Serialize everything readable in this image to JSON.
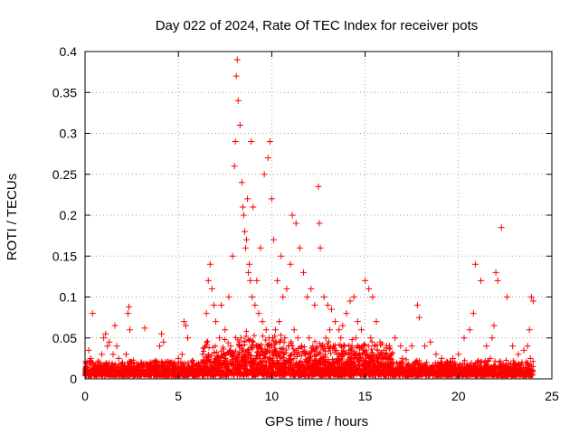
{
  "chart_data": {
    "type": "scatter",
    "title": "Day 022 of 2024, Rate Of TEC Index for receiver pots",
    "xlabel": "GPS time / hours",
    "ylabel": "ROTI / TECUs",
    "xlim": [
      0,
      25
    ],
    "ylim": [
      0,
      0.4
    ],
    "xticks": [
      0,
      5,
      10,
      15,
      20,
      25
    ],
    "yticks": [
      0,
      0.05,
      0.1,
      0.15,
      0.2,
      0.25,
      0.3,
      0.35,
      0.4
    ],
    "xtick_labels": [
      "0",
      "5",
      "10",
      "15",
      "20",
      "25"
    ],
    "ytick_labels": [
      "0",
      "0.05",
      "0.1",
      "0.15",
      "0.2",
      "0.25",
      "0.3",
      "0.35",
      "0.4"
    ],
    "grid": true,
    "marker": "plus",
    "color": "#ff0000",
    "series": [
      {
        "name": "",
        "x": [
          0.1,
          0.2,
          0.3,
          0.3,
          0.5,
          0.7,
          0.9,
          1.0,
          1.1,
          1.2,
          1.3,
          1.5,
          1.6,
          1.7,
          1.8,
          2.0,
          2.2,
          2.3,
          2.35,
          2.4,
          2.5,
          2.8,
          3.0,
          3.2,
          3.5,
          3.8,
          4.0,
          4.1,
          4.2,
          4.3,
          4.5,
          4.8,
          5.0,
          5.2,
          5.3,
          5.4,
          5.5,
          5.7,
          6.0,
          6.3,
          6.5,
          6.6,
          6.7,
          6.8,
          6.9,
          7.0,
          7.2,
          7.3,
          7.5,
          7.7,
          7.9,
          8.0,
          8.05,
          8.1,
          8.15,
          8.2,
          8.3,
          8.4,
          8.5,
          8.6,
          8.7,
          8.8,
          8.9,
          9.0,
          9.2,
          9.4,
          9.6,
          9.8,
          9.9,
          10.0,
          10.1,
          10.3,
          10.5,
          10.6,
          10.8,
          11.0,
          11.1,
          11.3,
          11.5,
          11.7,
          11.9,
          12.1,
          12.3,
          12.5,
          12.55,
          12.6,
          12.8,
          13.0,
          13.2,
          13.4,
          13.6,
          13.8,
          14.0,
          14.2,
          14.4,
          14.6,
          14.8,
          15.0,
          15.2,
          15.4,
          15.6,
          15.8,
          16.0,
          16.3,
          16.6,
          16.9,
          17.2,
          17.5,
          17.8,
          17.9,
          18.2,
          18.5,
          18.8,
          19.1,
          19.4,
          19.7,
          20.0,
          20.3,
          20.6,
          20.8,
          20.9,
          21.2,
          21.5,
          21.8,
          21.9,
          22.0,
          22.1,
          22.3,
          22.6,
          22.9,
          23.2,
          23.5,
          23.7,
          23.8,
          23.9,
          24.0,
          0.4,
          0.8,
          1.4,
          1.9,
          2.6,
          3.3,
          3.9,
          4.6,
          5.1,
          5.8,
          6.2,
          6.4,
          7.1,
          7.4,
          7.8,
          8.25,
          8.35,
          8.45,
          8.55,
          8.65,
          8.75,
          8.85,
          8.95,
          9.1,
          9.3,
          9.5,
          9.7,
          9.85,
          9.95,
          10.05,
          10.2,
          10.4,
          10.7,
          10.9,
          11.2,
          11.4,
          11.6,
          11.8,
          12.0,
          12.2,
          12.4,
          12.7,
          12.9,
          13.1,
          13.3,
          13.5,
          13.7,
          13.9,
          14.1,
          14.3,
          14.5,
          14.7,
          14.9,
          15.1,
          15.3,
          15.5,
          15.7,
          16.1,
          16.5,
          17.0,
          17.7,
          18.3,
          19.0,
          19.8,
          20.5,
          21.0,
          21.7,
          22.2,
          22.8,
          23.4,
          23.6,
          23.85
        ],
        "y": [
          0.02,
          0.035,
          0.01,
          0.025,
          0.015,
          0.02,
          0.03,
          0.05,
          0.055,
          0.04,
          0.045,
          0.03,
          0.065,
          0.04,
          0.025,
          0.02,
          0.03,
          0.08,
          0.088,
          0.06,
          0.02,
          0.015,
          0.02,
          0.062,
          0.02,
          0.015,
          0.04,
          0.055,
          0.045,
          0.02,
          0.015,
          0.02,
          0.025,
          0.03,
          0.07,
          0.065,
          0.05,
          0.02,
          0.015,
          0.03,
          0.08,
          0.12,
          0.14,
          0.11,
          0.09,
          0.07,
          0.05,
          0.09,
          0.06,
          0.1,
          0.15,
          0.26,
          0.29,
          0.37,
          0.39,
          0.34,
          0.31,
          0.24,
          0.2,
          0.16,
          0.22,
          0.14,
          0.29,
          0.21,
          0.12,
          0.16,
          0.25,
          0.27,
          0.29,
          0.22,
          0.17,
          0.12,
          0.15,
          0.1,
          0.11,
          0.14,
          0.2,
          0.19,
          0.16,
          0.13,
          0.1,
          0.11,
          0.09,
          0.235,
          0.19,
          0.16,
          0.1,
          0.09,
          0.085,
          0.07,
          0.06,
          0.065,
          0.08,
          0.095,
          0.1,
          0.07,
          0.06,
          0.12,
          0.11,
          0.1,
          0.07,
          0.045,
          0.035,
          0.04,
          0.05,
          0.04,
          0.035,
          0.04,
          0.09,
          0.075,
          0.04,
          0.045,
          0.03,
          0.025,
          0.02,
          0.025,
          0.03,
          0.05,
          0.06,
          0.08,
          0.14,
          0.12,
          0.04,
          0.05,
          0.065,
          0.13,
          0.12,
          0.185,
          0.1,
          0.04,
          0.03,
          0.035,
          0.04,
          0.06,
          0.1,
          0.095,
          0.08,
          0.02,
          0.01,
          0.012,
          0.02,
          0.018,
          0.015,
          0.02,
          0.01,
          0.015,
          0.012,
          0.02,
          0.025,
          0.03,
          0.04,
          0.03,
          0.05,
          0.21,
          0.18,
          0.17,
          0.13,
          0.12,
          0.1,
          0.09,
          0.08,
          0.07,
          0.06,
          0.05,
          0.04,
          0.05,
          0.06,
          0.07,
          0.05,
          0.04,
          0.06,
          0.05,
          0.04,
          0.03,
          0.05,
          0.04,
          0.03,
          0.04,
          0.05,
          0.06,
          0.04,
          0.03,
          0.05,
          0.04,
          0.03,
          0.04,
          0.05,
          0.03,
          0.04,
          0.03,
          0.05,
          0.04,
          0.03,
          0.02,
          0.02,
          0.025,
          0.02,
          0.02,
          0.015,
          0.02,
          0.015,
          0.02,
          0.025,
          0.02,
          0.018,
          0.02,
          0.02,
          0.025
        ]
      }
    ]
  }
}
